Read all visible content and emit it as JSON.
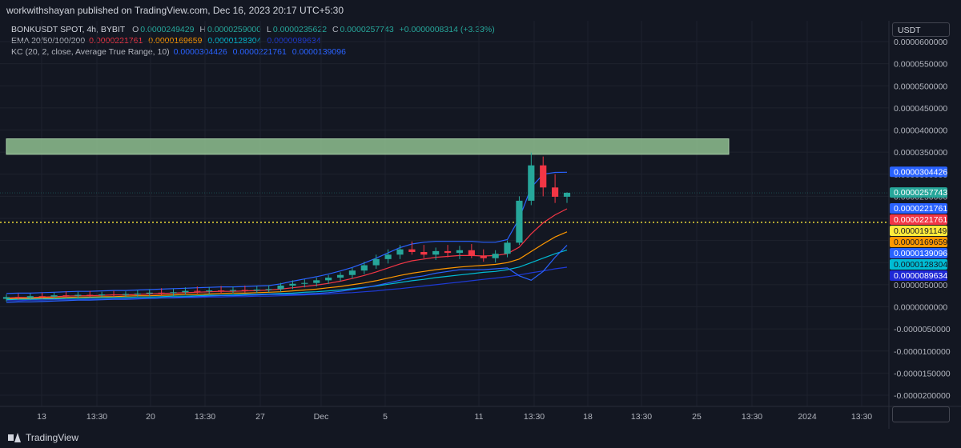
{
  "header": {
    "published": "workwithshayan published on TradingView.com, Dec 16, 2023 20:17 UTC+5:30"
  },
  "legend": {
    "symbol": "BONKUSDT SPOT, 4h, BYBIT",
    "o_label": "O",
    "o_value": "0.0000249429",
    "h_label": "H",
    "h_value": "0.0000259000",
    "l_label": "L",
    "l_value": "0.0000235622",
    "c_label": "C",
    "c_value": "0.0000257743",
    "change": "+0.0000008314 (+3.33%)",
    "ema_label": "EMA 20/50/100/200",
    "ema20": "0.0000221761",
    "ema50": "0.0000169659",
    "ema100": "0.0000128304",
    "ema200": "0.0000089634",
    "kc_label": "KC (20, 2, close, Average True Range, 10)",
    "kc_upper": "0.0000304426",
    "kc_middle": "0.0000221761",
    "kc_lower": "0.0000139096"
  },
  "price_axis": {
    "unit": "USDT",
    "ticks": [
      "0.0000600000",
      "0.0000550000",
      "0.0000500000",
      "0.0000450000",
      "0.0000400000",
      "0.0000350000",
      "0.0000300000",
      "0.0000250000",
      "0.0000200000",
      "0.0000150000",
      "0.0000100000",
      "0.0000050000",
      "0.0000000000",
      "-0.0000050000",
      "-0.0000100000",
      "-0.0000150000",
      "-0.0000200000"
    ],
    "labels": [
      {
        "text": "0.0000304426",
        "value": 3.04426e-05,
        "color": "#2962ff"
      },
      {
        "text": "0.0000257743",
        "value": 2.57743e-05,
        "color": "#26a69a"
      },
      {
        "text": "0.0000221761",
        "value": 2.21761e-05,
        "color": "#2962ff"
      },
      {
        "text": "0.0000221761",
        "value": 2.21761e-05,
        "color": "#f23645"
      },
      {
        "text": "0.0000191149",
        "value": 1.91149e-05,
        "color": "#ffeb3b"
      },
      {
        "text": "0.0000169659",
        "value": 1.69659e-05,
        "color": "#ff9800"
      },
      {
        "text": "0.0000139096",
        "value": 1.39096e-05,
        "color": "#2962ff"
      },
      {
        "text": "0.0000128304",
        "value": 1.28304e-05,
        "color": "#00bcd4"
      },
      {
        "text": "0.0000089634",
        "value": 8.9634e-06,
        "color": "#1e28d6"
      }
    ]
  },
  "time_axis": {
    "ticks": [
      "13",
      "13:30",
      "20",
      "13:30",
      "27",
      "Dec",
      "5",
      "11",
      "13:30",
      "18",
      "13:30",
      "25",
      "13:30",
      "2024",
      "13:30"
    ]
  },
  "footer": {
    "brand": "TradingView"
  },
  "chart_data": {
    "type": "candlestick",
    "symbol": "BONKUSDT",
    "interval": "4h",
    "ylim": [
      -2.1e-05,
      6.1e-05
    ],
    "x_range_days": [
      0,
      75
    ],
    "x_start_label": "Nov 13",
    "x_tick_days": [
      0,
      4,
      7,
      11,
      14,
      18,
      22,
      28,
      31,
      35,
      39,
      42,
      46,
      49,
      53
    ],
    "resistance_zone": {
      "low": 3.45e-05,
      "high": 3.8e-05,
      "color": "#8fbf8f"
    },
    "horizontal_level": {
      "value": 1.91149e-05,
      "color": "#ffeb3b"
    },
    "current_price": 2.57743e-05,
    "candles": [
      {
        "d": 0.0,
        "o": 1.8e-06,
        "h": 2.8e-06,
        "l": 1.2e-06,
        "c": 2.2e-06
      },
      {
        "d": 1.0,
        "o": 2.2e-06,
        "h": 3e-06,
        "l": 1.6e-06,
        "c": 2e-06
      },
      {
        "d": 2.0,
        "o": 2e-06,
        "h": 3e-06,
        "l": 1.5e-06,
        "c": 2.4e-06
      },
      {
        "d": 3.0,
        "o": 2.4e-06,
        "h": 3.2e-06,
        "l": 1.8e-06,
        "c": 2.3e-06
      },
      {
        "d": 4.0,
        "o": 2.3e-06,
        "h": 3.2e-06,
        "l": 1.8e-06,
        "c": 2.6e-06
      },
      {
        "d": 5.0,
        "o": 2.6e-06,
        "h": 3.5e-06,
        "l": 2e-06,
        "c": 2.5e-06
      },
      {
        "d": 6.0,
        "o": 2.5e-06,
        "h": 3.4e-06,
        "l": 2e-06,
        "c": 2.7e-06
      },
      {
        "d": 7.0,
        "o": 2.7e-06,
        "h": 3.6e-06,
        "l": 2.1e-06,
        "c": 2.6e-06
      },
      {
        "d": 8.0,
        "o": 2.6e-06,
        "h": 3.4e-06,
        "l": 2e-06,
        "c": 2.8e-06
      },
      {
        "d": 9.0,
        "o": 2.8e-06,
        "h": 3.6e-06,
        "l": 2.2e-06,
        "c": 2.7e-06
      },
      {
        "d": 10.0,
        "o": 2.7e-06,
        "h": 3.5e-06,
        "l": 2.1e-06,
        "c": 2.9e-06
      },
      {
        "d": 11.0,
        "o": 2.9e-06,
        "h": 3.8e-06,
        "l": 2.3e-06,
        "c": 3e-06
      },
      {
        "d": 12.0,
        "o": 3e-06,
        "h": 4e-06,
        "l": 2.4e-06,
        "c": 3.2e-06
      },
      {
        "d": 13.0,
        "o": 3.2e-06,
        "h": 4.2e-06,
        "l": 2.6e-06,
        "c": 3.1e-06
      },
      {
        "d": 14.0,
        "o": 3.1e-06,
        "h": 4.1e-06,
        "l": 2.5e-06,
        "c": 3.3e-06
      },
      {
        "d": 15.0,
        "o": 3.3e-06,
        "h": 4.4e-06,
        "l": 2.7e-06,
        "c": 3.6e-06
      },
      {
        "d": 16.0,
        "o": 3.6e-06,
        "h": 4.6e-06,
        "l": 3e-06,
        "c": 3.5e-06
      },
      {
        "d": 17.0,
        "o": 3.5e-06,
        "h": 4.5e-06,
        "l": 2.9e-06,
        "c": 3.7e-06
      },
      {
        "d": 18.0,
        "o": 3.7e-06,
        "h": 4.7e-06,
        "l": 3e-06,
        "c": 3.6e-06
      },
      {
        "d": 19.0,
        "o": 3.6e-06,
        "h": 4.6e-06,
        "l": 3e-06,
        "c": 3.8e-06
      },
      {
        "d": 20.0,
        "o": 3.8e-06,
        "h": 4.8e-06,
        "l": 3.2e-06,
        "c": 3.7e-06
      },
      {
        "d": 21.0,
        "o": 3.7e-06,
        "h": 4.7e-06,
        "l": 3.1e-06,
        "c": 3.9e-06
      },
      {
        "d": 22.0,
        "o": 3.9e-06,
        "h": 4.9e-06,
        "l": 3.3e-06,
        "c": 4e-06
      },
      {
        "d": 23.0,
        "o": 4e-06,
        "h": 5.4e-06,
        "l": 3.4e-06,
        "c": 4.8e-06
      },
      {
        "d": 24.0,
        "o": 4.8e-06,
        "h": 6e-06,
        "l": 4e-06,
        "c": 5.2e-06
      },
      {
        "d": 25.0,
        "o": 5.2e-06,
        "h": 6.2e-06,
        "l": 4.4e-06,
        "c": 5.4e-06
      },
      {
        "d": 26.0,
        "o": 5.4e-06,
        "h": 6.6e-06,
        "l": 4.6e-06,
        "c": 6e-06
      },
      {
        "d": 27.0,
        "o": 6e-06,
        "h": 7.2e-06,
        "l": 5.2e-06,
        "c": 6.6e-06
      },
      {
        "d": 28.0,
        "o": 6.6e-06,
        "h": 7.8e-06,
        "l": 5.8e-06,
        "c": 7.2e-06
      },
      {
        "d": 29.0,
        "o": 7.2e-06,
        "h": 8.8e-06,
        "l": 6.4e-06,
        "c": 8.2e-06
      },
      {
        "d": 30.0,
        "o": 8.2e-06,
        "h": 1.02e-05,
        "l": 7.4e-06,
        "c": 9.4e-06
      },
      {
        "d": 31.0,
        "o": 9.4e-06,
        "h": 1.18e-05,
        "l": 8.6e-06,
        "c": 1.08e-05
      },
      {
        "d": 32.0,
        "o": 1.08e-05,
        "h": 1.3e-05,
        "l": 9.8e-06,
        "c": 1.18e-05
      },
      {
        "d": 33.0,
        "o": 1.18e-05,
        "h": 1.4e-05,
        "l": 1.08e-05,
        "c": 1.3e-05
      },
      {
        "d": 34.0,
        "o": 1.3e-05,
        "h": 1.48e-05,
        "l": 1.18e-05,
        "c": 1.24e-05
      },
      {
        "d": 35.0,
        "o": 1.24e-05,
        "h": 1.4e-05,
        "l": 1.1e-05,
        "c": 1.18e-05
      },
      {
        "d": 36.0,
        "o": 1.18e-05,
        "h": 1.34e-05,
        "l": 1.06e-05,
        "c": 1.26e-05
      },
      {
        "d": 37.0,
        "o": 1.26e-05,
        "h": 1.4e-05,
        "l": 1.12e-05,
        "c": 1.22e-05
      },
      {
        "d": 38.0,
        "o": 1.22e-05,
        "h": 1.38e-05,
        "l": 1.08e-05,
        "c": 1.28e-05
      },
      {
        "d": 39.0,
        "o": 1.28e-05,
        "h": 1.42e-05,
        "l": 1.1e-05,
        "c": 1.16e-05
      },
      {
        "d": 40.0,
        "o": 1.16e-05,
        "h": 1.3e-05,
        "l": 1.02e-05,
        "c": 1.1e-05
      },
      {
        "d": 41.0,
        "o": 1.1e-05,
        "h": 1.28e-05,
        "l": 1e-05,
        "c": 1.2e-05
      },
      {
        "d": 42.0,
        "o": 1.2e-05,
        "h": 1.5e-05,
        "l": 1.12e-05,
        "c": 1.45e-05
      },
      {
        "d": 43.0,
        "o": 1.45e-05,
        "h": 2.5e-05,
        "l": 1.4e-05,
        "c": 2.4e-05
      },
      {
        "d": 44.0,
        "o": 2.4e-05,
        "h": 3.49e-05,
        "l": 2.3e-05,
        "c": 3.2e-05
      },
      {
        "d": 45.0,
        "o": 3.2e-05,
        "h": 3.4e-05,
        "l": 2.5e-05,
        "c": 2.7e-05
      },
      {
        "d": 46.0,
        "o": 2.7e-05,
        "h": 3e-05,
        "l": 2.35e-05,
        "c": 2.49e-05
      },
      {
        "d": 47.0,
        "o": 2.49e-05,
        "h": 2.59e-05,
        "l": 2.35e-05,
        "c": 2.58e-05
      }
    ],
    "indicators": {
      "ema20": {
        "name": "EMA 20",
        "color": "#f23645",
        "values": [
          2e-06,
          2.1e-06,
          2.1e-06,
          2.2e-06,
          2.3e-06,
          2.4e-06,
          2.5e-06,
          2.5e-06,
          2.6e-06,
          2.7e-06,
          2.7e-06,
          2.8e-06,
          2.9e-06,
          3e-06,
          3.1e-06,
          3.2e-06,
          3.3e-06,
          3.4e-06,
          3.5e-06,
          3.5e-06,
          3.6e-06,
          3.7e-06,
          3.8e-06,
          4e-06,
          4.3e-06,
          4.6e-06,
          4.9e-06,
          5.3e-06,
          5.8e-06,
          6.4e-06,
          7.1e-06,
          7.9e-06,
          8.8e-06,
          9.7e-06,
          1.04e-05,
          1.08e-05,
          1.12e-05,
          1.14e-05,
          1.16e-05,
          1.16e-05,
          1.15e-05,
          1.16e-05,
          1.2e-05,
          1.35e-05,
          1.65e-05,
          1.9e-05,
          2.08e-05,
          2.21761e-05
        ]
      },
      "ema50": {
        "name": "EMA 50",
        "color": "#ff9800",
        "values": [
          1.8e-06,
          1.9e-06,
          1.9e-06,
          2e-06,
          2e-06,
          2.1e-06,
          2.2e-06,
          2.2e-06,
          2.3e-06,
          2.3e-06,
          2.4e-06,
          2.5e-06,
          2.5e-06,
          2.6e-06,
          2.7e-06,
          2.8e-06,
          2.8e-06,
          2.9e-06,
          3e-06,
          3.1e-06,
          3.1e-06,
          3.2e-06,
          3.3e-06,
          3.4e-06,
          3.6e-06,
          3.8e-06,
          4e-06,
          4.3e-06,
          4.6e-06,
          5e-06,
          5.4e-06,
          5.9e-06,
          6.5e-06,
          7.1e-06,
          7.6e-06,
          8e-06,
          8.4e-06,
          8.7e-06,
          9e-06,
          9.2e-06,
          9.4e-06,
          9.6e-06,
          1e-05,
          1.08e-05,
          1.25e-05,
          1.42e-05,
          1.58e-05,
          1.69659e-05
        ]
      },
      "ema100": {
        "name": "EMA 100",
        "color": "#00bcd4",
        "values": [
          1.6e-06,
          1.7e-06,
          1.7e-06,
          1.8e-06,
          1.8e-06,
          1.9e-06,
          1.9e-06,
          2e-06,
          2e-06,
          2.1e-06,
          2.1e-06,
          2.2e-06,
          2.2e-06,
          2.3e-06,
          2.4e-06,
          2.4e-06,
          2.5e-06,
          2.6e-06,
          2.6e-06,
          2.7e-06,
          2.8e-06,
          2.8e-06,
          2.9e-06,
          3e-06,
          3.1e-06,
          3.3e-06,
          3.4e-06,
          3.6e-06,
          3.8e-06,
          4.1e-06,
          4.4e-06,
          4.7e-06,
          5.1e-06,
          5.5e-06,
          5.9e-06,
          6.2e-06,
          6.6e-06,
          6.9e-06,
          7.2e-06,
          7.5e-06,
          7.8e-06,
          8e-06,
          8.4e-06,
          9e-06,
          1e-05,
          1.1e-05,
          1.2e-05,
          1.28304e-05
        ]
      },
      "ema200": {
        "name": "EMA 200",
        "color": "#1e3ad6",
        "values": [
          1.4e-06,
          1.4e-06,
          1.5e-06,
          1.5e-06,
          1.6e-06,
          1.6e-06,
          1.6e-06,
          1.7e-06,
          1.7e-06,
          1.8e-06,
          1.8e-06,
          1.9e-06,
          1.9e-06,
          2e-06,
          2e-06,
          2.1e-06,
          2.1e-06,
          2.2e-06,
          2.2e-06,
          2.3e-06,
          2.3e-06,
          2.4e-06,
          2.4e-06,
          2.5e-06,
          2.6e-06,
          2.7e-06,
          2.8e-06,
          2.9e-06,
          3.1e-06,
          3.2e-06,
          3.4e-06,
          3.6e-06,
          3.9e-06,
          4.1e-06,
          4.4e-06,
          4.7e-06,
          5e-06,
          5.3e-06,
          5.6e-06,
          5.9e-06,
          6.2e-06,
          6.5e-06,
          6.8e-06,
          7.2e-06,
          7.7e-06,
          8.1e-06,
          8.6e-06,
          8.9634e-06
        ]
      },
      "kc_upper": {
        "name": "KC upper",
        "color": "#2962ff",
        "values": [
          3e-06,
          3.1e-06,
          3.1e-06,
          3.2e-06,
          3.3e-06,
          3.4e-06,
          3.5e-06,
          3.5e-06,
          3.6e-06,
          3.7e-06,
          3.7e-06,
          3.8e-06,
          3.9e-06,
          4e-06,
          4.1e-06,
          4.2e-06,
          4.3e-06,
          4.4e-06,
          4.5e-06,
          4.5e-06,
          4.6e-06,
          4.7e-06,
          4.8e-06,
          5.2e-06,
          5.8e-06,
          6.3e-06,
          6.8e-06,
          7.4e-06,
          8.1e-06,
          8.9e-06,
          9.9e-06,
          1.1e-05,
          1.22e-05,
          1.34e-05,
          1.42e-05,
          1.46e-05,
          1.48e-05,
          1.48e-05,
          1.48e-05,
          1.48e-05,
          1.46e-05,
          1.46e-05,
          1.52e-05,
          2e-05,
          2.7e-05,
          3e-05,
          3.04e-05,
          3.04426e-05
        ]
      },
      "kc_lower": {
        "name": "KC lower",
        "color": "#2962ff",
        "values": [
          1e-06,
          1.1e-06,
          1.1e-06,
          1.2e-06,
          1.3e-06,
          1.4e-06,
          1.5e-06,
          1.5e-06,
          1.6e-06,
          1.7e-06,
          1.7e-06,
          1.8e-06,
          1.9e-06,
          2e-06,
          2.1e-06,
          2.2e-06,
          2.3e-06,
          2.4e-06,
          2.5e-06,
          2.5e-06,
          2.6e-06,
          2.7e-06,
          2.8e-06,
          2.8e-06,
          2.8e-06,
          2.9e-06,
          3e-06,
          3.2e-06,
          3.5e-06,
          3.9e-06,
          4.3e-06,
          4.8e-06,
          5.4e-06,
          6e-06,
          6.6e-06,
          7e-06,
          7.6e-06,
          8e-06,
          8.4e-06,
          8.4e-06,
          8.4e-06,
          8.6e-06,
          8.8e-06,
          7e-06,
          6e-06,
          8e-06,
          1.12e-05,
          1.39096e-05
        ]
      }
    }
  }
}
